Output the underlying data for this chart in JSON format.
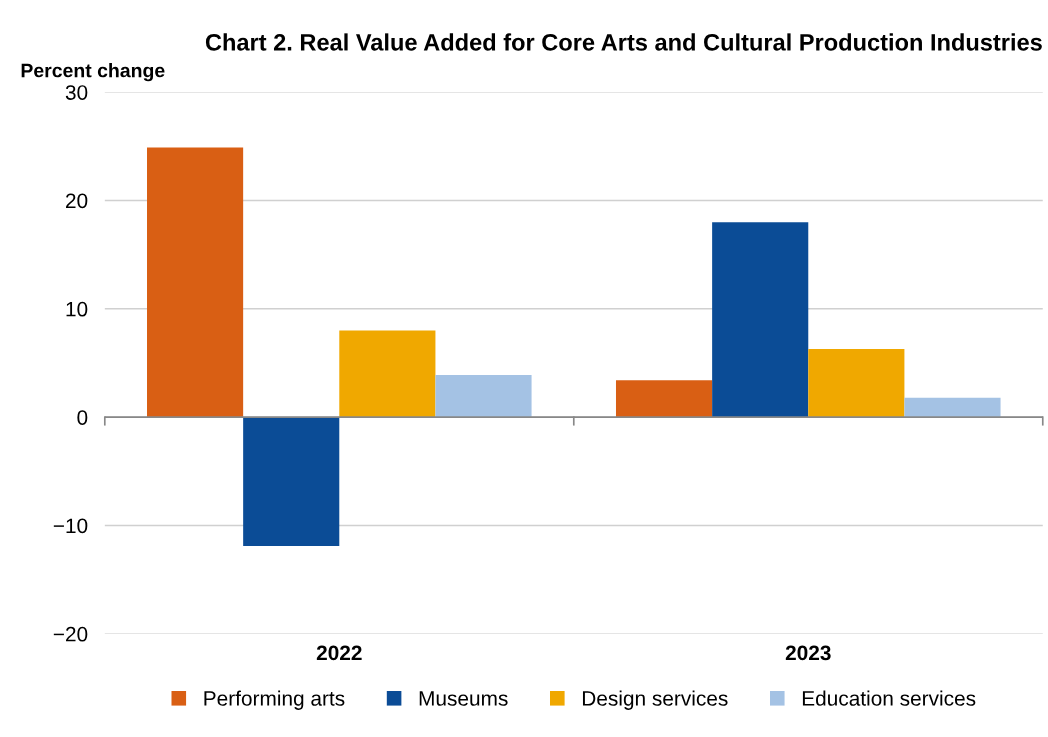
{
  "chart_data": {
    "type": "bar",
    "title": "Chart 2. Real Value Added for Core Arts and Cultural Production Industries",
    "ylabel": "Percent change",
    "categories": [
      "2022",
      "2023"
    ],
    "series": [
      {
        "name": "Performing arts",
        "color": "#d95f14",
        "values": [
          24.9,
          3.4
        ]
      },
      {
        "name": "Museums",
        "color": "#0b4c96",
        "values": [
          -11.9,
          18.0
        ]
      },
      {
        "name": "Design services",
        "color": "#f0a800",
        "values": [
          8.0,
          6.3
        ]
      },
      {
        "name": "Education services",
        "color": "#a4c2e4",
        "values": [
          3.9,
          1.8
        ]
      }
    ],
    "ylim": [
      -20,
      30
    ],
    "yticks": [
      {
        "value": -20,
        "label": "−20"
      },
      {
        "value": -10,
        "label": "−10"
      },
      0,
      10,
      20,
      30
    ],
    "grid": "y",
    "legend": "bottom"
  }
}
